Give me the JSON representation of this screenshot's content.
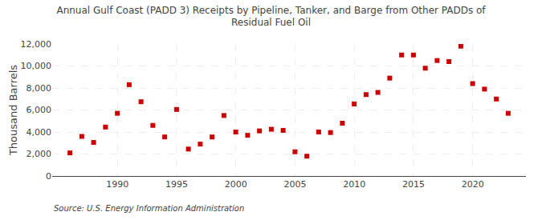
{
  "chart_data": {
    "type": "scatter",
    "title": "Annual Gulf Coast (PADD 3) Receipts by Pipeline, Tanker, and Barge from Other PADDs of\nResidual Fuel Oil",
    "ylabel": "Thousand Barrels",
    "annotations": [
      "Source: U.S. Energy Information Administration"
    ],
    "x": [
      1986,
      1987,
      1988,
      1989,
      1990,
      1991,
      1992,
      1993,
      1994,
      1995,
      1996,
      1997,
      1998,
      1999,
      2000,
      2001,
      2002,
      2003,
      2004,
      2005,
      2006,
      2007,
      2008,
      2009,
      2010,
      2011,
      2012,
      2013,
      2014,
      2015,
      2016,
      2017,
      2018,
      2019,
      2020,
      2021,
      2022,
      2023
    ],
    "values": [
      2100,
      3600,
      3050,
      4450,
      5700,
      8300,
      6750,
      4600,
      3550,
      6050,
      2450,
      2900,
      3550,
      5500,
      4000,
      3700,
      4100,
      4250,
      4150,
      2200,
      1800,
      4000,
      3950,
      4800,
      6550,
      7400,
      7600,
      8900,
      11000,
      11000,
      9800,
      10500,
      10400,
      11800,
      8400,
      7900,
      7000,
      5700
    ],
    "color": "#cc0000",
    "marker": "square",
    "xlim": [
      1984.5,
      2024.5
    ],
    "xticks": [
      1990,
      1995,
      2000,
      2005,
      2010,
      2015,
      2020
    ],
    "ylim": [
      0,
      12000
    ],
    "yticks": [
      0,
      {
        "value": 2000,
        "label": "2,000"
      },
      {
        "value": 4000,
        "label": "4,000"
      },
      {
        "value": 6000,
        "label": "6,000"
      },
      {
        "value": 8000,
        "label": "8,000"
      },
      {
        "value": 10000,
        "label": "10,000"
      },
      {
        "value": 12000,
        "label": "12,000"
      }
    ],
    "grid": true
  }
}
